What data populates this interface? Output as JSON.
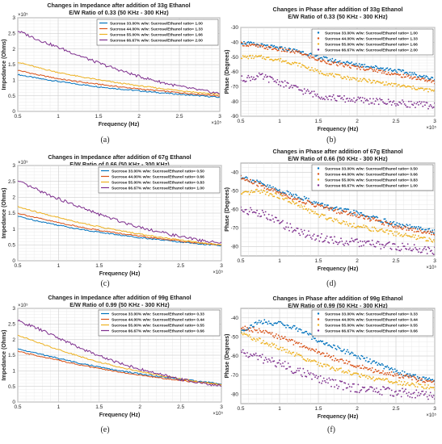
{
  "figure": {
    "legend_prefix": "Sucrose",
    "legend_mid": "w/w: Sucrose/Ethanol ratio=",
    "x_exponent": "×10⁵",
    "y_exponent": "×10⁵",
    "series_colors": [
      "#0072BD",
      "#D95319",
      "#EDB120",
      "#7E2F8E"
    ],
    "sucrose_levels": [
      "33.00%",
      "44.00%",
      "55.00%",
      "66.67%"
    ]
  },
  "panels": [
    {
      "id": "a",
      "caption": "(a)",
      "kind": "impedance",
      "title": [
        "Changes in Impedance after addition of 33g Ethanol",
        "E/W Ratio of 0.33 (50 KHz - 300 KHz)"
      ],
      "legend_ratios": [
        "1.00",
        "1.33",
        "1.66",
        "2.00"
      ]
    },
    {
      "id": "b",
      "caption": "(b)",
      "kind": "phase",
      "title": [
        "Changes in Phase after addition of 33g Ethanol",
        "E/W Ratio of 0.33 (50 KHz - 300 KHz)"
      ],
      "legend_ratios": [
        "1.00",
        "1.33",
        "1.66",
        "2.00"
      ]
    },
    {
      "id": "c",
      "caption": "(c)",
      "kind": "impedance",
      "title": [
        "Changes in Impedance after addition of 67g Ethanol",
        "E/W Ratio of 0.66 (50 KHz - 300 KHz)"
      ],
      "legend_ratios": [
        "0.50",
        "0.66",
        "0.83",
        "1.00"
      ]
    },
    {
      "id": "d",
      "caption": "(d)",
      "kind": "phase",
      "title": [
        "Changes in Phase after addition of 67g Ethanol",
        "E/W Ratio of 0.66 (50 KHz - 300 KHz)"
      ],
      "legend_ratios": [
        "0.50",
        "0.66",
        "0.83",
        "1.00"
      ]
    },
    {
      "id": "e",
      "caption": "(e)",
      "kind": "impedance",
      "title": [
        "Changes in Impedance after addition of 99g Ethanol",
        "E/W Ratio of 0.99 (50 KHz - 300 KHz)"
      ],
      "legend_ratios": [
        "0.33",
        "0.44",
        "0.55",
        "0.66"
      ]
    },
    {
      "id": "f",
      "caption": "(f)",
      "kind": "phase",
      "title": [
        "Changes in Phase after addition of 99g Ethanol",
        "E/W Ratio of 0.99 (50 KHz - 300 KHz)"
      ],
      "legend_ratios": [
        "0.33",
        "0.44",
        "0.55",
        "0.66"
      ]
    }
  ],
  "chart_data": [
    {
      "type": "line",
      "panel": "a",
      "title": "Changes in Impedance after addition of 33g Ethanol E/W Ratio of 0.33 (50 KHz - 300 KHz)",
      "xlabel": "Frequency (Hz)",
      "ylabel": "Impedance (Ohms)",
      "xlim": [
        0.5,
        3
      ],
      "ylim": [
        0,
        3
      ],
      "xticks": [
        "0.5",
        "1",
        "1.5",
        "2",
        "2.5",
        "3"
      ],
      "yticks": [
        "0",
        "0.5",
        "1",
        "1.5",
        "2",
        "2.5",
        "3"
      ],
      "grid": true,
      "legend": "top-right",
      "x": [
        0.5,
        0.75,
        1.0,
        1.25,
        1.5,
        1.75,
        2.0,
        2.25,
        2.5,
        2.75,
        3.0
      ],
      "series": [
        {
          "name": "Sucrose 33.00% w/w: Sucrose/Ethanol ratio= 1.00",
          "values": [
            1.18,
            1.06,
            0.96,
            0.87,
            0.79,
            0.72,
            0.66,
            0.6,
            0.55,
            0.5,
            0.45
          ]
        },
        {
          "name": "Sucrose 44.00% w/w: Sucrose/Ethanol ratio= 1.33",
          "values": [
            1.32,
            1.17,
            1.05,
            0.95,
            0.87,
            0.79,
            0.72,
            0.66,
            0.6,
            0.55,
            0.5
          ]
        },
        {
          "name": "Sucrose 55.00% w/w: Sucrose/Ethanol ratio= 1.66",
          "values": [
            1.58,
            1.4,
            1.25,
            1.12,
            1.01,
            0.91,
            0.82,
            0.74,
            0.67,
            0.6,
            0.54
          ]
        },
        {
          "name": "Sucrose 66.67% w/w: Sucrose/Ethanol ratio= 2.00",
          "values": [
            2.58,
            2.3,
            2.05,
            1.8,
            1.55,
            1.33,
            1.12,
            0.95,
            0.8,
            0.68,
            0.57
          ]
        }
      ]
    },
    {
      "type": "scatter",
      "panel": "b",
      "title": "Changes in Phase after addition of 33g Ethanol E/W Ratio of 0.33 (50 KHz - 300 KHz)",
      "xlabel": "Frequency (Hz)",
      "ylabel": "Phase (Degrees)",
      "xlim": [
        0.5,
        3
      ],
      "ylim": [
        -90,
        -30
      ],
      "xticks": [
        "0.5",
        "1",
        "1.5",
        "2",
        "2.5",
        "3"
      ],
      "yticks": [
        "-90",
        "-80",
        "-70",
        "-60",
        "-50",
        "-40",
        "-30"
      ],
      "grid": true,
      "legend": "top-right",
      "x": [
        0.5,
        0.75,
        1.0,
        1.25,
        1.5,
        1.75,
        2.0,
        2.25,
        2.5,
        2.75,
        3.0
      ],
      "series": [
        {
          "name": "Sucrose 33.00% w/w: Sucrose/Ethanol ratio= 1.00",
          "values": [
            -40,
            -42,
            -44,
            -46,
            -50,
            -53,
            -55,
            -57,
            -59,
            -62,
            -65
          ]
        },
        {
          "name": "Sucrose 44.00% w/w: Sucrose/Ethanol ratio= 1.33",
          "values": [
            -41,
            -43,
            -45,
            -47,
            -52,
            -55,
            -57,
            -59,
            -62,
            -64,
            -67
          ]
        },
        {
          "name": "Sucrose 55.00% w/w: Sucrose/Ethanol ratio= 1.66",
          "values": [
            -50,
            -50,
            -52,
            -55,
            -60,
            -63,
            -65,
            -67,
            -69,
            -71,
            -73
          ]
        },
        {
          "name": "Sucrose 66.67% w/w: Sucrose/Ethanol ratio= 2.00",
          "values": [
            -65,
            -63,
            -67,
            -72,
            -76,
            -78,
            -79,
            -80,
            -81,
            -82,
            -83
          ]
        }
      ]
    },
    {
      "type": "line",
      "panel": "c",
      "title": "Changes in Impedance after addition of 67g Ethanol E/W Ratio of 0.66 (50 KHz - 300 KHz)",
      "xlabel": "Frequency (Hz)",
      "ylabel": "Impedance (Ohms)",
      "xlim": [
        0.5,
        3
      ],
      "ylim": [
        0,
        3
      ],
      "xticks": [
        "0.5",
        "1",
        "1.5",
        "2",
        "2.5",
        "3"
      ],
      "yticks": [
        "0",
        "0.5",
        "1",
        "1.5",
        "2",
        "2.5",
        "3"
      ],
      "grid": true,
      "legend": "top-right",
      "x": [
        0.5,
        0.75,
        1.0,
        1.25,
        1.5,
        1.75,
        2.0,
        2.25,
        2.5,
        2.75,
        3.0
      ],
      "series": [
        {
          "name": "Sucrose 33.00% w/w: Sucrose/Ethanol ratio= 0.50",
          "values": [
            1.4,
            1.25,
            1.12,
            1.0,
            0.9,
            0.81,
            0.73,
            0.66,
            0.59,
            0.53,
            0.47
          ]
        },
        {
          "name": "Sucrose 44.00% w/w: Sucrose/Ethanol ratio= 0.66",
          "values": [
            1.5,
            1.34,
            1.2,
            1.07,
            0.96,
            0.86,
            0.77,
            0.69,
            0.62,
            0.55,
            0.49
          ]
        },
        {
          "name": "Sucrose 55.00% w/w: Sucrose/Ethanol ratio= 0.83",
          "values": [
            1.7,
            1.52,
            1.36,
            1.21,
            1.07,
            0.95,
            0.84,
            0.74,
            0.65,
            0.57,
            0.5
          ]
        },
        {
          "name": "Sucrose 66.67% w/w: Sucrose/Ethanol ratio= 1.00",
          "values": [
            2.5,
            2.22,
            1.95,
            1.7,
            1.46,
            1.25,
            1.06,
            0.9,
            0.76,
            0.64,
            0.55
          ]
        }
      ]
    },
    {
      "type": "scatter",
      "panel": "d",
      "title": "Changes in Phase after addition of 67g Ethanol E/W Ratio of 0.66 (50 KHz - 300 KHz)",
      "xlabel": "Frequency (Hz)",
      "ylabel": "Phase (Degrees)",
      "xlim": [
        0.5,
        3
      ],
      "ylim": [
        -85,
        -35
      ],
      "xticks": [
        "0.5",
        "1",
        "1.5",
        "2",
        "2.5",
        "3"
      ],
      "yticks": [
        "-80",
        "-70",
        "-60",
        "-50",
        "-40"
      ],
      "grid": true,
      "legend": "top-right",
      "x": [
        0.5,
        0.75,
        1.0,
        1.25,
        1.5,
        1.75,
        2.0,
        2.25,
        2.5,
        2.75,
        3.0
      ],
      "series": [
        {
          "name": "Sucrose 33.00% w/w: Sucrose/Ethanol ratio= 0.50",
          "values": [
            -42,
            -46,
            -50,
            -53,
            -57,
            -60,
            -62,
            -65,
            -68,
            -70,
            -72
          ]
        },
        {
          "name": "Sucrose 44.00% w/w: Sucrose/Ethanol ratio= 0.66",
          "values": [
            -43,
            -47,
            -51,
            -55,
            -58,
            -61,
            -63,
            -66,
            -69,
            -71,
            -73
          ]
        },
        {
          "name": "Sucrose 55.00% w/w: Sucrose/Ethanol ratio= 0.83",
          "values": [
            -52,
            -50,
            -53,
            -58,
            -63,
            -66,
            -69,
            -71,
            -73,
            -75,
            -77
          ]
        },
        {
          "name": "Sucrose 66.67% w/w: Sucrose/Ethanol ratio= 1.00",
          "values": [
            -60,
            -62,
            -67,
            -72,
            -75,
            -77,
            -78,
            -79,
            -80,
            -81,
            -82
          ]
        }
      ]
    },
    {
      "type": "line",
      "panel": "e",
      "title": "Changes in Impedance after addition of 99g Ethanol E/W Ratio of 0.99 (50 KHz - 300 KHz)",
      "xlabel": "Frequency (Hz)",
      "ylabel": "Impedance (Ohms)",
      "xlim": [
        0.5,
        3
      ],
      "ylim": [
        0,
        3
      ],
      "xticks": [
        "0.5",
        "1",
        "1.5",
        "2",
        "2.5",
        "3"
      ],
      "yticks": [
        "0",
        "0.5",
        "1",
        "1.5",
        "2",
        "2.5",
        "3"
      ],
      "grid": true,
      "legend": "top-right",
      "x": [
        0.5,
        0.75,
        1.0,
        1.25,
        1.5,
        1.75,
        2.0,
        2.25,
        2.5,
        2.75,
        3.0
      ],
      "series": [
        {
          "name": "Sucrose 33.00% w/w: Sucrose/Ethanol ratio= 0.33",
          "values": [
            1.7,
            1.55,
            1.4,
            1.25,
            1.12,
            1.0,
            0.9,
            0.81,
            0.73,
            0.66,
            0.58
          ]
        },
        {
          "name": "Sucrose 44.00% w/w: Sucrose/Ethanol ratio= 0.44",
          "values": [
            1.62,
            1.48,
            1.34,
            1.2,
            1.07,
            0.96,
            0.86,
            0.77,
            0.69,
            0.62,
            0.55
          ]
        },
        {
          "name": "Sucrose 55.00% w/w: Sucrose/Ethanol ratio= 0.55",
          "values": [
            2.15,
            1.9,
            1.68,
            1.47,
            1.28,
            1.12,
            0.98,
            0.85,
            0.74,
            0.64,
            0.55
          ]
        },
        {
          "name": "Sucrose 66.67% w/w: Sucrose/Ethanol ratio= 0.66",
          "values": [
            2.6,
            2.35,
            2.05,
            1.75,
            1.48,
            1.25,
            1.05,
            0.88,
            0.73,
            0.61,
            0.51
          ]
        }
      ]
    },
    {
      "type": "scatter",
      "panel": "f",
      "title": "Changes in Phase after addition of 99g Ethanol E/W Ratio of 0.99 (50 KHz - 300 KHz)",
      "xlabel": "Frequency (Hz)",
      "ylabel": "Phase (Degrees)",
      "xlim": [
        0.5,
        3
      ],
      "ylim": [
        -85,
        -35
      ],
      "xticks": [
        "0.5",
        "1",
        "1.5",
        "2",
        "2.5",
        "3"
      ],
      "yticks": [
        "-80",
        "-70",
        "-60",
        "-50",
        "-40"
      ],
      "grid": true,
      "legend": "top-right",
      "x": [
        0.5,
        0.75,
        1.0,
        1.25,
        1.5,
        1.75,
        2.0,
        2.25,
        2.5,
        2.75,
        3.0
      ],
      "series": [
        {
          "name": "Sucrose 33.00% w/w: Sucrose/Ethanol ratio= 0.33",
          "values": [
            -47,
            -42,
            -43,
            -46,
            -52,
            -56,
            -60,
            -64,
            -68,
            -71,
            -73
          ]
        },
        {
          "name": "Sucrose 44.00% w/w: Sucrose/Ethanol ratio= 0.44",
          "values": [
            -45,
            -47,
            -50,
            -54,
            -58,
            -62,
            -65,
            -68,
            -70,
            -72,
            -74
          ]
        },
        {
          "name": "Sucrose 55.00% w/w: Sucrose/Ethanol ratio= 0.55",
          "values": [
            -48,
            -52,
            -56,
            -60,
            -64,
            -67,
            -70,
            -72,
            -74,
            -75,
            -77
          ]
        },
        {
          "name": "Sucrose 66.67% w/w: Sucrose/Ethanol ratio= 0.66",
          "values": [
            -58,
            -61,
            -64,
            -68,
            -72,
            -75,
            -77,
            -78,
            -79,
            -80,
            -81
          ]
        }
      ]
    }
  ]
}
